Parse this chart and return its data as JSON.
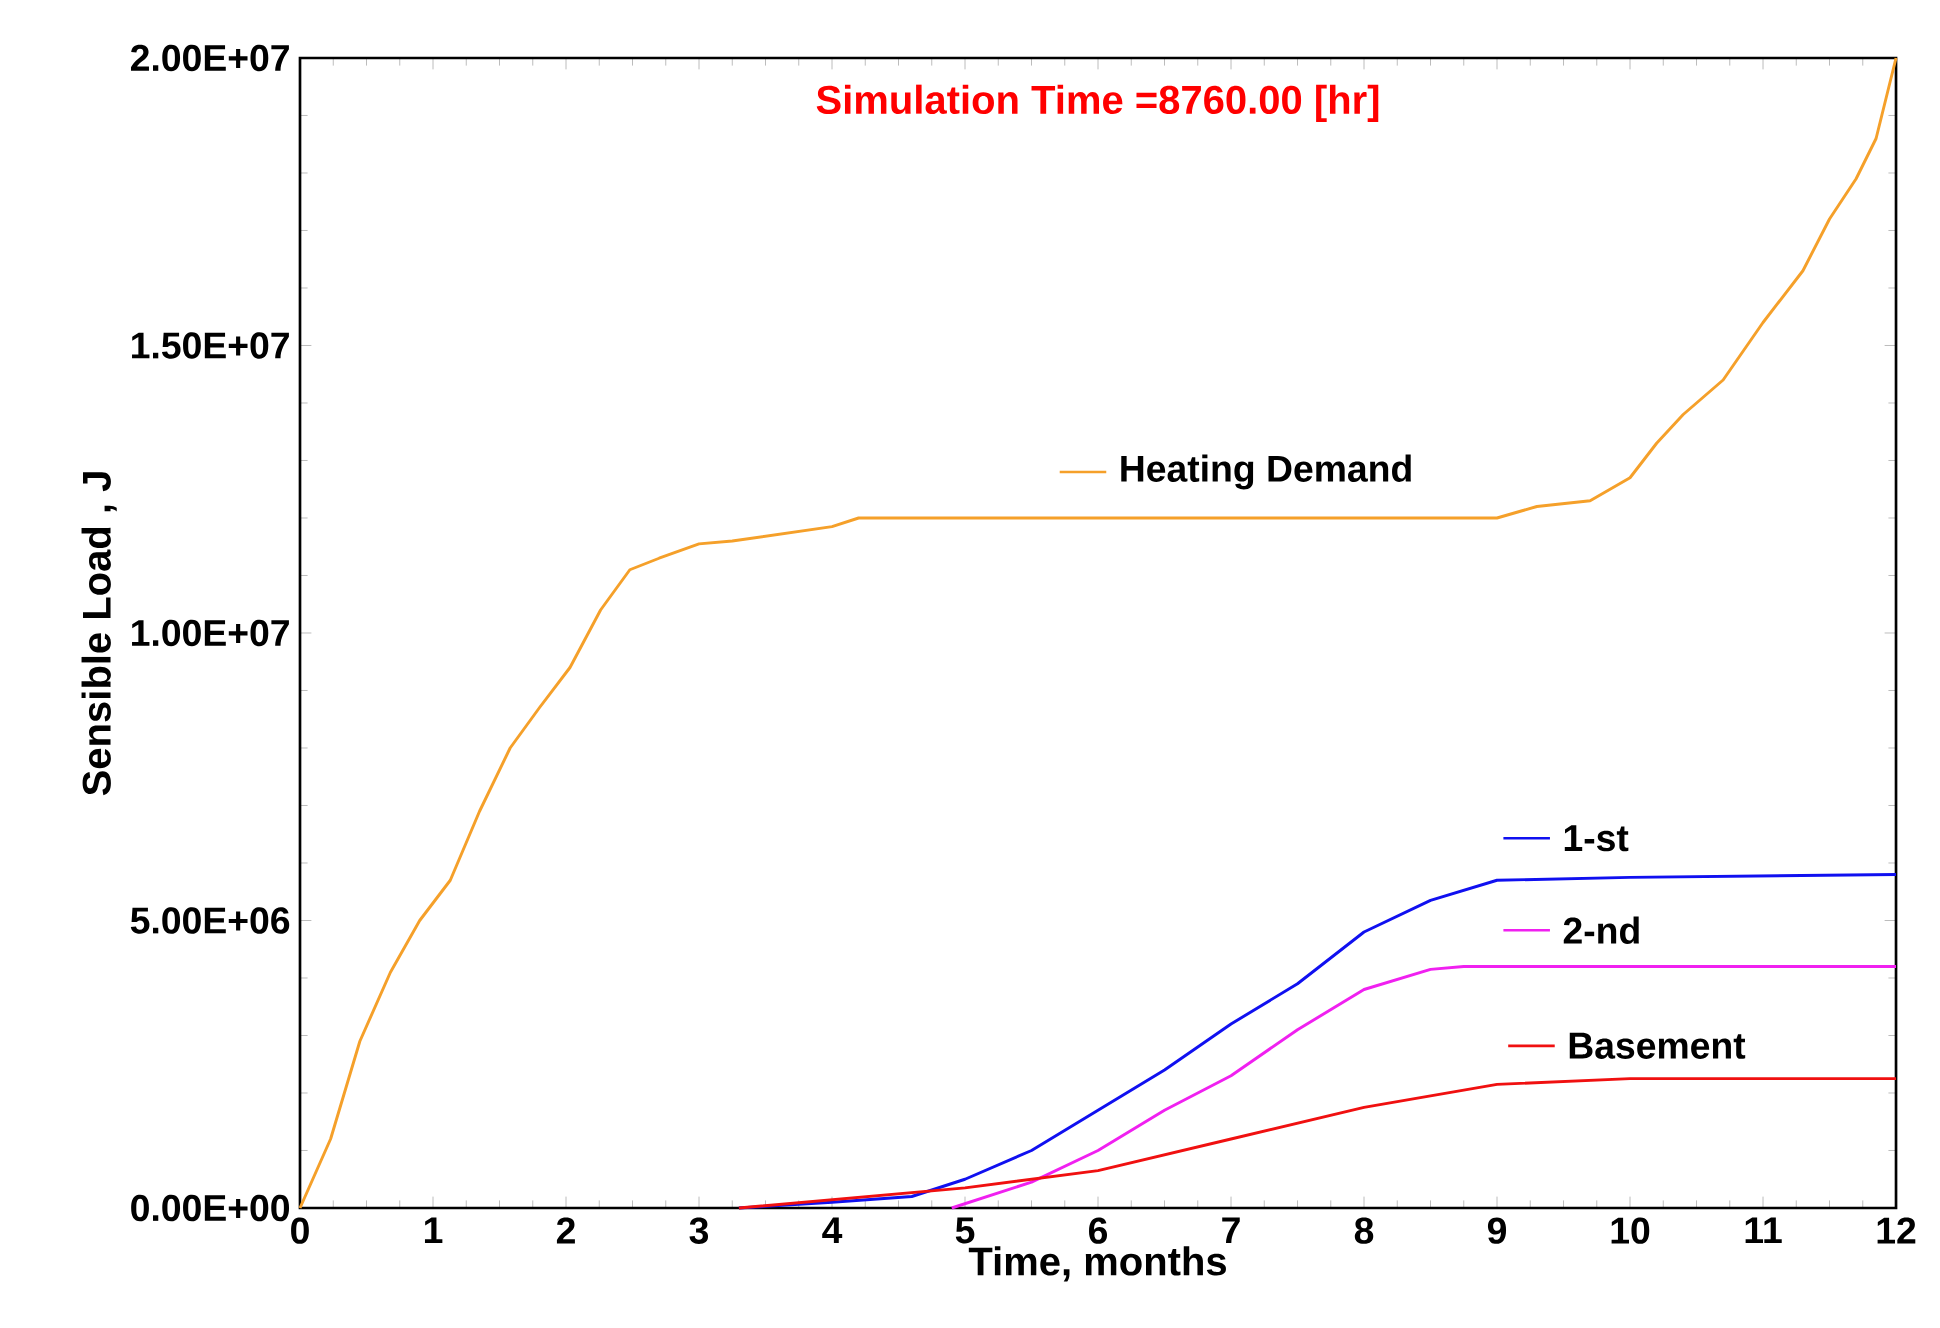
{
  "chart_data": {
    "type": "line",
    "xlabel": "Time, months",
    "ylabel": "Sensible Load , J",
    "annotations": [
      "Simulation Time =8760.00 [hr]"
    ],
    "xlim": [
      0,
      12
    ],
    "xticks": [
      0,
      1,
      2,
      3,
      4,
      5,
      6,
      7,
      8,
      9,
      10,
      11,
      12
    ],
    "ylim": [
      0,
      20000000
    ],
    "yticks": [
      {
        "value": 0,
        "label": "0.00E+00"
      },
      {
        "value": 5000000,
        "label": "5.00E+06"
      },
      {
        "value": 10000000,
        "label": "1.00E+07"
      },
      {
        "value": 15000000,
        "label": "1.50E+07"
      },
      {
        "value": 20000000,
        "label": "2.00E+07"
      }
    ],
    "grid": false,
    "legend": "right",
    "marker": "none",
    "line_style": "solid",
    "series": [
      {
        "name": "Heating Demand",
        "color": "#f5a02a",
        "x": [
          0,
          0.23,
          0.45,
          0.68,
          0.9,
          1.13,
          1.35,
          1.58,
          1.8,
          2.03,
          2.26,
          2.48,
          2.7,
          3.0,
          3.25,
          4.0,
          4.2,
          9.0,
          9.3,
          9.7,
          10.0,
          10.2,
          10.4,
          10.7,
          11.0,
          11.3,
          11.5,
          11.7,
          11.85,
          12.0
        ],
        "values": [
          0,
          1200000,
          2900000,
          4100000,
          5000000,
          5700000,
          6900000,
          8000000,
          8700000,
          9400000,
          10400000,
          11100000,
          11300000,
          11550000,
          11600000,
          11850000,
          12000000,
          12000000,
          12200000,
          12300000,
          12700000,
          13300000,
          13800000,
          14400000,
          15400000,
          16300000,
          17200000,
          17900000,
          18600000,
          20000000
        ]
      },
      {
        "name": "1-st",
        "color": "#1010f0",
        "x": [
          3.3,
          4.0,
          4.6,
          5.0,
          5.5,
          6.0,
          6.5,
          7.0,
          7.5,
          8.0,
          8.5,
          9.0,
          10.0,
          12.0
        ],
        "values": [
          0,
          100000,
          200000,
          500000,
          1000000,
          1700000,
          2400000,
          3200000,
          3900000,
          4800000,
          5350000,
          5700000,
          5750000,
          5800000
        ]
      },
      {
        "name": "2-nd",
        "color": "#f020f0",
        "x": [
          4.9,
          5.5,
          6.0,
          6.5,
          7.0,
          7.5,
          8.0,
          8.5,
          8.75,
          12.0
        ],
        "values": [
          0,
          450000,
          1000000,
          1700000,
          2300000,
          3100000,
          3800000,
          4150000,
          4200000,
          4200000
        ]
      },
      {
        "name": "Basement",
        "color": "#f01010",
        "x": [
          3.3,
          5.0,
          6.0,
          7.0,
          8.0,
          9.0,
          10.0,
          12.0
        ],
        "values": [
          0,
          350000,
          650000,
          1200000,
          1750000,
          2150000,
          2250000,
          2250000
        ]
      }
    ]
  }
}
